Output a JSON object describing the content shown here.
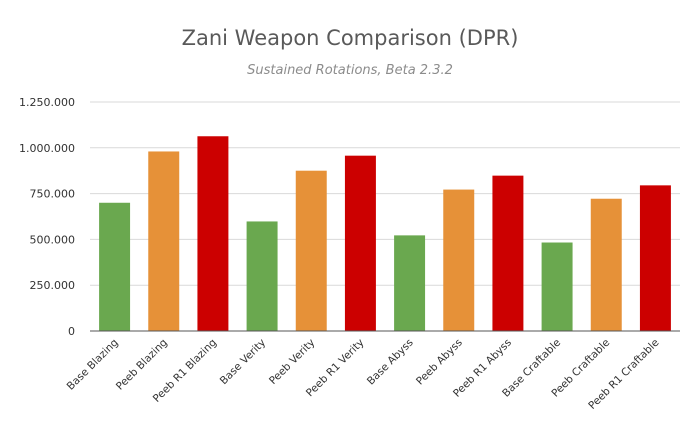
{
  "chart_data": {
    "type": "bar",
    "title": "Zani Weapon Comparison (DPR)",
    "subtitle": "Sustained Rotations, Beta 2.3.2",
    "xlabel": "",
    "ylabel": "",
    "ylim": [
      0,
      1250000
    ],
    "yticks": [
      0,
      250000,
      500000,
      750000,
      1000000,
      1250000
    ],
    "ytick_labels": [
      "0",
      "250.000",
      "500.000",
      "750.000",
      "1.000.000",
      "1.250.000"
    ],
    "grid": true,
    "categories": [
      "Base Blazing",
      "Peeb Blazing",
      "Peeb R1 Blazing",
      "Base Verity",
      "Peeb Verity",
      "Peeb R1 Verity",
      "Base Abyss",
      "Peeb Abyss",
      "Peeb R1 Abyss",
      "Base Craftable",
      "Peeb Craftable",
      "Peeb R1 Craftable"
    ],
    "values": [
      700000,
      980000,
      1063000,
      598000,
      875000,
      957000,
      522000,
      772000,
      848000,
      483000,
      722000,
      795000
    ],
    "colors": [
      "#6aa84f",
      "#e69138",
      "#cc0000",
      "#6aa84f",
      "#e69138",
      "#cc0000",
      "#6aa84f",
      "#e69138",
      "#cc0000",
      "#6aa84f",
      "#e69138",
      "#cc0000"
    ]
  }
}
